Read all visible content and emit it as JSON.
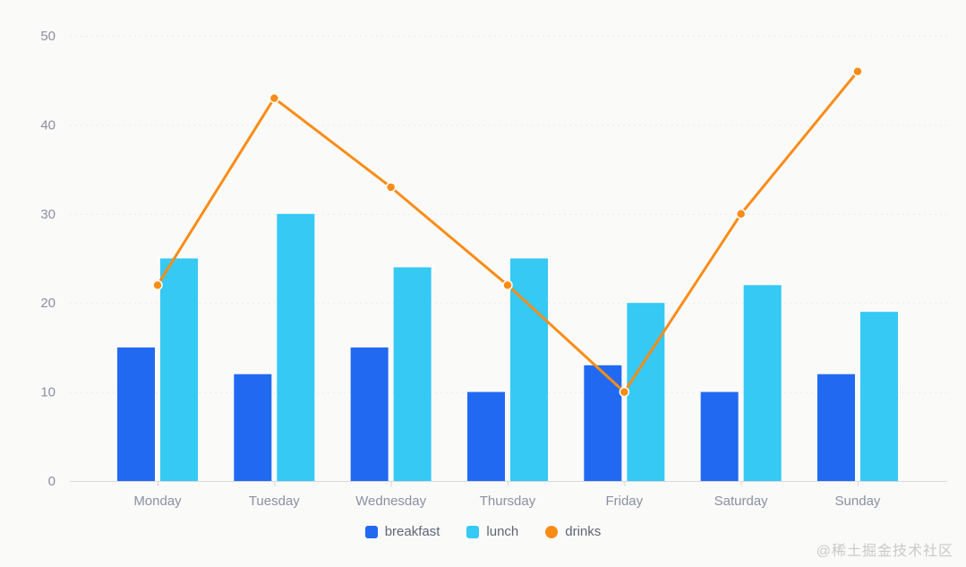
{
  "chart_data": {
    "type": "combo-bar-line",
    "title": "",
    "xlabel": "",
    "ylabel": "",
    "categories": [
      "Monday",
      "Tuesday",
      "Wednesday",
      "Thursday",
      "Friday",
      "Saturday",
      "Sunday"
    ],
    "series": [
      {
        "name": "breakfast",
        "type": "bar",
        "color": "#2269F2",
        "values": [
          15,
          12,
          15,
          10,
          13,
          10,
          12
        ]
      },
      {
        "name": "lunch",
        "type": "bar",
        "color": "#35C9F4",
        "values": [
          25,
          30,
          24,
          25,
          20,
          22,
          19
        ]
      },
      {
        "name": "drinks",
        "type": "line",
        "color": "#FA8C16",
        "values": [
          22,
          43,
          33,
          22,
          10,
          30,
          46
        ]
      }
    ],
    "ylim": [
      0,
      50
    ],
    "yticks": [
      0,
      10,
      20,
      30,
      40,
      50
    ],
    "grid": "horizontal-dotted",
    "legend_position": "bottom",
    "axis_label_color": "#8B90A2",
    "axis_line_color": "#D8D8DC",
    "gridline_color": "#E9ECE3",
    "background_color": "#FAFAF9"
  },
  "watermark": "@稀土掘金技术社区"
}
